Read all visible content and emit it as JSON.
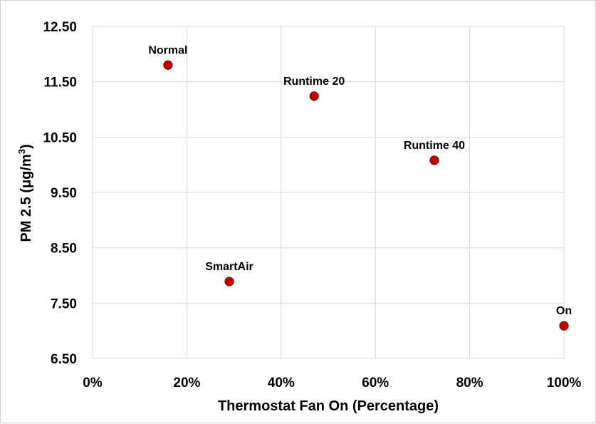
{
  "chart_data": {
    "type": "scatter",
    "xlabel": "Thermostat Fan On (Percentage)",
    "ylabel": "PM 2.5 (μg/m",
    "ylabel_superscript": "3",
    "ylabel_suffix": ")",
    "xlim": [
      0,
      1
    ],
    "ylim": [
      6.5,
      12.5
    ],
    "x_ticks": [
      0,
      0.2,
      0.4,
      0.6,
      0.8,
      1.0
    ],
    "x_tick_labels": [
      "0%",
      "20%",
      "40%",
      "60%",
      "80%",
      "100%"
    ],
    "y_ticks": [
      6.5,
      7.5,
      8.5,
      9.5,
      10.5,
      11.5,
      12.5
    ],
    "y_tick_labels": [
      "6.50",
      "7.50",
      "8.50",
      "9.50",
      "10.50",
      "11.50",
      "12.50"
    ],
    "grid": true,
    "marker_color": "#c00000",
    "marker_edge_color": "#8c0000",
    "points": [
      {
        "label": "Normal",
        "x": 0.16,
        "y": 11.8
      },
      {
        "label": "Runtime 20",
        "x": 0.47,
        "y": 11.24
      },
      {
        "label": "Runtime 40",
        "x": 0.725,
        "y": 10.08
      },
      {
        "label": "SmartAir",
        "x": 0.29,
        "y": 7.89
      },
      {
        "label": "On",
        "x": 1.0,
        "y": 7.09
      }
    ]
  }
}
